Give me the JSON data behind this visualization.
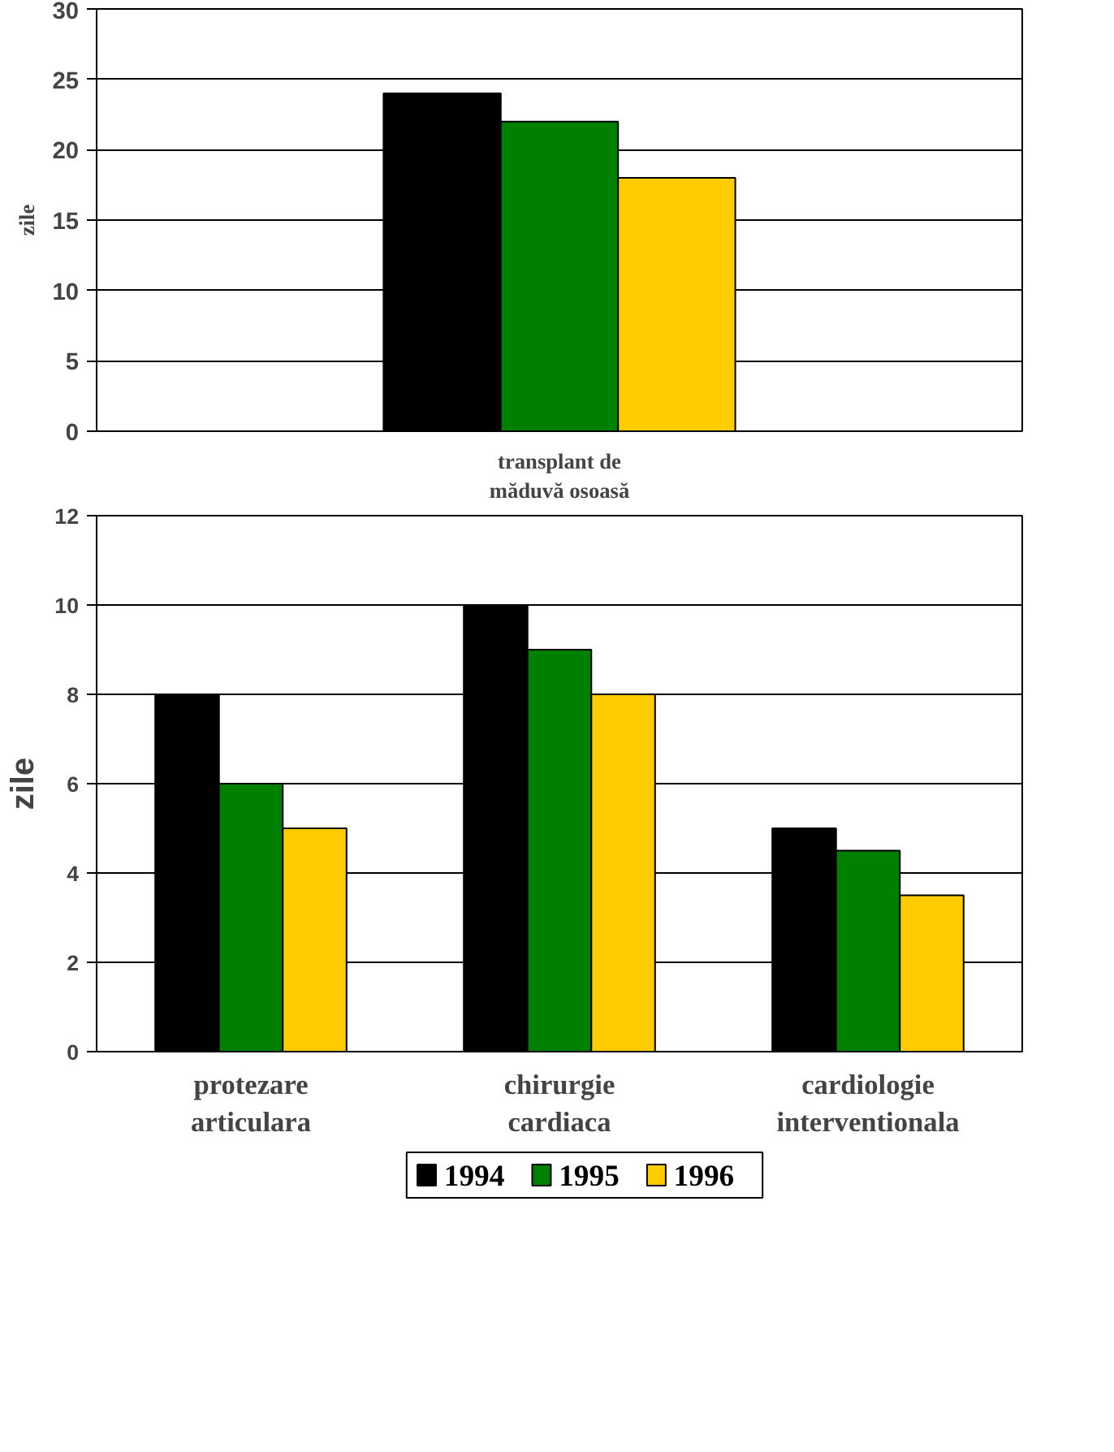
{
  "chart_data": [
    {
      "type": "bar",
      "categories": [
        "transplant de măduvă osoasă"
      ],
      "ylabel": "zile",
      "ylim": [
        0,
        30
      ],
      "yticks": [
        0,
        5,
        10,
        15,
        20,
        25,
        30
      ],
      "grid": "y",
      "series": [
        {
          "color": "#000000",
          "values": [
            24
          ]
        },
        {
          "color": "#008000",
          "values": [
            22
          ]
        },
        {
          "color": "#ffcc00",
          "values": [
            18
          ]
        }
      ]
    },
    {
      "type": "bar",
      "categories": [
        "protezare articulara",
        "chirurgie cardiaca",
        "cardiologie interventionala"
      ],
      "ylabel": "zile",
      "ylim": [
        0,
        12
      ],
      "yticks": [
        0,
        2,
        4,
        6,
        8,
        10,
        12
      ],
      "grid": "y",
      "legend": "bottom",
      "series": [
        {
          "name": "1994",
          "color": "#000000",
          "values": [
            8,
            10,
            5
          ]
        },
        {
          "name": "1995",
          "color": "#008000",
          "values": [
            6,
            9,
            4.5
          ]
        },
        {
          "name": "1996",
          "color": "#ffcc00",
          "values": [
            5,
            8,
            3.5
          ]
        }
      ]
    }
  ]
}
